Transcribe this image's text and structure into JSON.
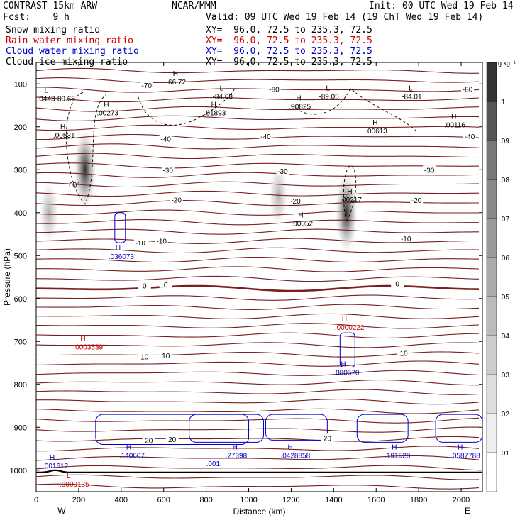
{
  "header": {
    "model": "CONTRAST 15km ARW",
    "org": "NCAR/MMM",
    "init": "Init: 00 UTC Wed 19 Feb 14",
    "fcst": "Fcst:    9 h",
    "valid": "Valid: 09 UTC Wed 19 Feb 14 (19 ChT Wed 19 Feb 14)",
    "fields": [
      {
        "name": "Snow mixing ratio",
        "xy": "XY=  96.0, 72.5 to 235.3, 72.5",
        "color": "#000000"
      },
      {
        "name": "Rain water mixing ratio",
        "xy": "XY=  96.0, 72.5 to 235.3, 72.5",
        "color": "#cc0000"
      },
      {
        "name": "Cloud water mixing ratio",
        "xy": "XY=  96.0, 72.5 to 235.3, 72.5",
        "color": "#0000cc"
      },
      {
        "name": "Cloud ice mixing ratio",
        "xy": "XY=  96.0, 72.5 to 235.3, 72.5",
        "color": "#000000"
      }
    ]
  },
  "chart_data": {
    "type": "contour",
    "xlabel": "Distance (km)",
    "ylabel": "Pressure (hPa)",
    "xlim": [
      0,
      2100
    ],
    "ylim": [
      1050,
      50
    ],
    "x_ticks": [
      0,
      200,
      400,
      600,
      800,
      1000,
      1200,
      1400,
      1600,
      1800,
      2000
    ],
    "y_ticks": [
      100,
      200,
      300,
      400,
      500,
      600,
      700,
      800,
      900,
      1000
    ],
    "x_end_labels": {
      "left": "W",
      "right": "E"
    },
    "colorbar": {
      "unit": "g kg⁻¹",
      "ticks": [
        ".01",
        ".02",
        ".03",
        ".04",
        ".05",
        ".06",
        ".07",
        ".08",
        ".09",
        ".1"
      ],
      "colors": [
        "#ffffff",
        "#eeeeee",
        "#dddddd",
        "#cccccc",
        "#bbbbbb",
        "#aaaaaa",
        "#999999",
        "#888888",
        "#777777",
        "#555555",
        "#333333"
      ]
    },
    "temperature_contours": {
      "color": "#7a1e1e",
      "interval_C": 5,
      "labels": [
        {
          "text": "-70",
          "x": 520,
          "p": 103
        },
        {
          "text": "-80",
          "x": 1120,
          "p": 112
        },
        {
          "text": "-80",
          "x": 2030,
          "p": 112
        },
        {
          "text": "-40",
          "x": 610,
          "p": 228
        },
        {
          "text": "-40",
          "x": 1080,
          "p": 222
        },
        {
          "text": "-40",
          "x": 2040,
          "p": 222
        },
        {
          "text": "-30",
          "x": 620,
          "p": 300
        },
        {
          "text": "-30",
          "x": 1160,
          "p": 303
        },
        {
          "text": "-30",
          "x": 1850,
          "p": 300
        },
        {
          "text": "-20",
          "x": 660,
          "p": 370
        },
        {
          "text": "-20",
          "x": 1220,
          "p": 372
        },
        {
          "text": "-20",
          "x": 1790,
          "p": 371
        },
        {
          "text": "-10",
          "x": 490,
          "p": 470
        },
        {
          "text": "-10",
          "x": 590,
          "p": 466
        },
        {
          "text": "-10",
          "x": 1740,
          "p": 460
        },
        {
          "text": "0",
          "x": 510,
          "p": 570
        },
        {
          "text": "0",
          "x": 610,
          "p": 567
        },
        {
          "text": "0",
          "x": 1700,
          "p": 565
        },
        {
          "text": "10",
          "x": 510,
          "p": 735
        },
        {
          "text": "10",
          "x": 610,
          "p": 733
        },
        {
          "text": "10",
          "x": 1730,
          "p": 727
        },
        {
          "text": "20",
          "x": 530,
          "p": 930
        },
        {
          "text": "20",
          "x": 640,
          "p": 928
        },
        {
          "text": "20",
          "x": 1370,
          "p": 925
        }
      ]
    },
    "extrema_labels": [
      {
        "mark": "H",
        "text": "-66.72",
        "x": 610,
        "p": 88,
        "color": "#000000"
      },
      {
        "mark": "L",
        "text": ".0443-80.68",
        "x": 5,
        "p": 127,
        "color": "#000000"
      },
      {
        "mark": "H",
        "text": ".00273",
        "x": 285,
        "p": 160,
        "color": "#000000"
      },
      {
        "mark": "L",
        "text": "-84.08",
        "x": 830,
        "p": 122,
        "color": "#000000"
      },
      {
        "mark": "H",
        "text": ".01893",
        "x": 790,
        "p": 160,
        "color": "#000000"
      },
      {
        "mark": "H",
        "text": ".00825",
        "x": 1190,
        "p": 145,
        "color": "#000000"
      },
      {
        "mark": "L",
        "text": "-89.05",
        "x": 1330,
        "p": 122,
        "color": "#000000"
      },
      {
        "mark": "L",
        "text": "-84.01",
        "x": 1720,
        "p": 122,
        "color": "#000000"
      },
      {
        "mark": "H",
        "text": ".00613",
        "x": 1550,
        "p": 202,
        "color": "#000000"
      },
      {
        "mark": "H",
        "text": ".00116",
        "x": 1920,
        "p": 188,
        "color": "#000000"
      },
      {
        "mark": "H",
        "text": ".00531",
        "x": 80,
        "p": 212,
        "color": "#000000"
      },
      {
        "mark": "",
        "text": ".001",
        "x": 145,
        "p": 328,
        "color": "#000000"
      },
      {
        "mark": "H",
        "text": ".00217",
        "x": 1430,
        "p": 362,
        "color": "#000000"
      },
      {
        "mark": "H",
        "text": ".00052",
        "x": 1200,
        "p": 418,
        "color": "#000000"
      },
      {
        "mark": "H",
        "text": ".036073",
        "x": 340,
        "p": 495,
        "color": "#0000cc"
      },
      {
        "mark": "H",
        "text": ".0000222",
        "x": 1405,
        "p": 660,
        "color": "#cc0000"
      },
      {
        "mark": "H",
        "text": ".0003539",
        "x": 175,
        "p": 705,
        "color": "#cc0000"
      },
      {
        "mark": "H",
        "text": ".080570",
        "x": 1400,
        "p": 765,
        "color": "#0000cc"
      },
      {
        "mark": "H",
        "text": ".140607",
        "x": 390,
        "p": 958,
        "color": "#0000cc"
      },
      {
        "mark": "",
        "text": ".001",
        "x": 800,
        "p": 977,
        "color": "#0000cc"
      },
      {
        "mark": "H",
        "text": ".27398",
        "x": 890,
        "p": 958,
        "color": "#0000cc"
      },
      {
        "mark": "H",
        "text": ".0428858",
        "x": 1150,
        "p": 958,
        "color": "#0000cc"
      },
      {
        "mark": "H",
        "text": ".191528",
        "x": 1640,
        "p": 958,
        "color": "#0000cc"
      },
      {
        "mark": "H",
        "text": ".0587788",
        "x": 1950,
        "p": 958,
        "color": "#0000cc"
      },
      {
        "mark": "H",
        "text": ".001612",
        "x": 30,
        "p": 982,
        "color": "#0000cc"
      },
      {
        "mark": "L",
        "text": ".0000135",
        "x": 110,
        "p": 1025,
        "color": "#cc0000"
      }
    ],
    "snow_maxima": [
      {
        "x": 230,
        "p": 300,
        "peak": 0.1
      },
      {
        "x": 1140,
        "p": 360,
        "peak": 0.04
      },
      {
        "x": 1460,
        "p": 400,
        "peak": 0.1
      },
      {
        "x": 60,
        "p": 400,
        "peak": 0.03
      }
    ]
  }
}
